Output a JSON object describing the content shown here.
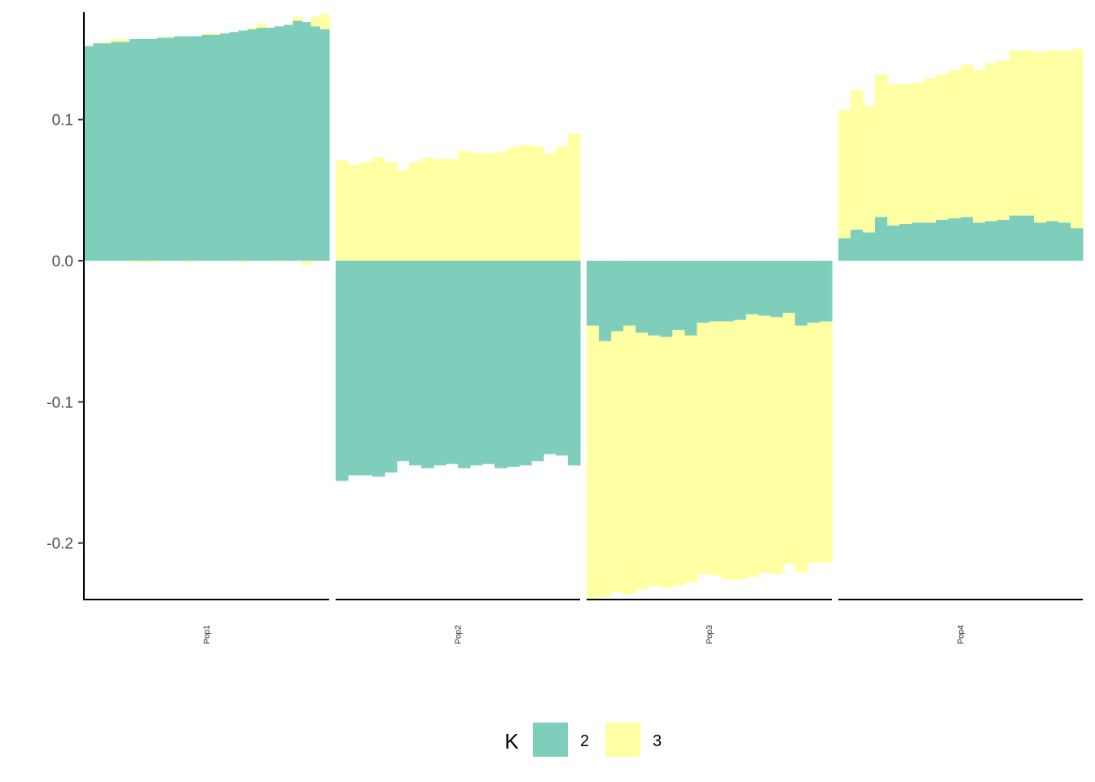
{
  "chart_data": {
    "type": "bar",
    "subtype": "faceted-diverging-stacked",
    "title": "",
    "xlabel": "",
    "ylabel": "",
    "ylim": [
      -0.24,
      0.176
    ],
    "y_ticks": [
      {
        "value": 0.1,
        "label": "0.1"
      },
      {
        "value": 0.0,
        "label": "0.0"
      },
      {
        "value": -0.1,
        "label": "-0.1"
      },
      {
        "value": -0.2,
        "label": "-0.2"
      }
    ],
    "grid": false,
    "legend": {
      "title": "K",
      "position": "bottom",
      "entries": [
        {
          "label": "2",
          "color": "#7FCDBB"
        },
        {
          "label": "3",
          "color": "#FFFFA3"
        }
      ]
    },
    "colors": {
      "2": "#7FCDBB",
      "3": "#FFFFA3"
    },
    "facets": [
      {
        "label": "Pop1",
        "series": [
          {
            "name": "2",
            "values": [
              0.152,
              0.154,
              0.154,
              0.155,
              0.155,
              0.157,
              0.157,
              0.157,
              0.158,
              0.158,
              0.159,
              0.159,
              0.159,
              0.16,
              0.16,
              0.161,
              0.162,
              0.163,
              0.164,
              0.165,
              0.165,
              0.166,
              0.167,
              0.17,
              0.169,
              0.166,
              0.164
            ]
          },
          {
            "name": "3",
            "values": [
              0.0,
              0.0,
              0.001,
              0.002,
              0.002,
              -0.001,
              -0.001,
              -0.001,
              0.0,
              0.001,
              0.0,
              -0.001,
              0.0,
              0.001,
              0.001,
              0.0,
              0.0,
              -0.001,
              0.001,
              0.003,
              0.0,
              -0.001,
              0.001,
              0.003,
              -0.003,
              0.007,
              0.011
            ]
          }
        ]
      },
      {
        "label": "Pop2",
        "series": [
          {
            "name": "2",
            "values": [
              -0.156,
              -0.152,
              -0.152,
              -0.153,
              -0.15,
              -0.142,
              -0.145,
              -0.147,
              -0.145,
              -0.144,
              -0.147,
              -0.145,
              -0.144,
              -0.147,
              -0.146,
              -0.145,
              -0.142,
              -0.137,
              -0.138,
              -0.145
            ]
          },
          {
            "name": "3",
            "values": [
              0.071,
              0.068,
              0.07,
              0.073,
              0.07,
              0.064,
              0.07,
              0.073,
              0.072,
              0.072,
              0.078,
              0.076,
              0.076,
              0.077,
              0.08,
              0.082,
              0.081,
              0.076,
              0.081,
              0.09
            ]
          }
        ]
      },
      {
        "label": "Pop3",
        "series": [
          {
            "name": "2",
            "values": [
              -0.046,
              -0.057,
              -0.05,
              -0.046,
              -0.051,
              -0.053,
              -0.054,
              -0.049,
              -0.053,
              -0.044,
              -0.043,
              -0.043,
              -0.042,
              -0.038,
              -0.039,
              -0.04,
              -0.037,
              -0.046,
              -0.044,
              -0.043
            ]
          },
          {
            "name": "3",
            "values": [
              -0.194,
              -0.181,
              -0.185,
              -0.19,
              -0.182,
              -0.177,
              -0.178,
              -0.181,
              -0.175,
              -0.178,
              -0.18,
              -0.183,
              -0.184,
              -0.186,
              -0.182,
              -0.182,
              -0.178,
              -0.175,
              -0.17,
              -0.171
            ]
          }
        ]
      },
      {
        "label": "Pop4",
        "series": [
          {
            "name": "2",
            "values": [
              0.016,
              0.022,
              0.02,
              0.031,
              0.025,
              0.026,
              0.027,
              0.027,
              0.029,
              0.03,
              0.031,
              0.027,
              0.028,
              0.029,
              0.032,
              0.032,
              0.027,
              0.028,
              0.027,
              0.023
            ]
          },
          {
            "name": "3",
            "values": [
              0.091,
              0.099,
              0.09,
              0.101,
              0.1,
              0.099,
              0.099,
              0.102,
              0.103,
              0.105,
              0.108,
              0.108,
              0.112,
              0.113,
              0.117,
              0.117,
              0.121,
              0.121,
              0.122,
              0.127
            ]
          }
        ]
      }
    ]
  }
}
